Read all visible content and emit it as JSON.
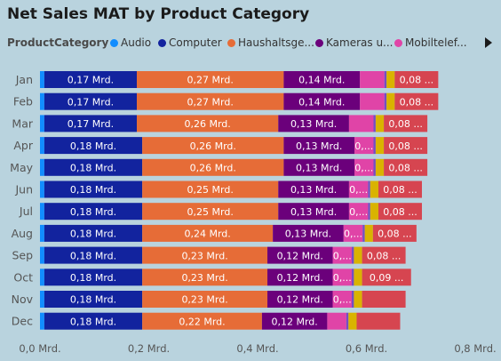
{
  "chart_data": {
    "type": "bar",
    "orientation": "horizontal",
    "stacked": true,
    "title": "Net Sales MAT by Product Category",
    "legend": {
      "title": "ProductCategory",
      "placement": "top-left",
      "entries": [
        "Audio",
        "Computer",
        "Haushaltsge...",
        "Kameras u...",
        "Mobiltelef..."
      ]
    },
    "categories": [
      "Jan",
      "Feb",
      "Mar",
      "Apr",
      "May",
      "Jun",
      "Jul",
      "Aug",
      "Sep",
      "Oct",
      "Nov",
      "Dec"
    ],
    "x_ticks": [
      "0,0 Mrd.",
      "0,2 Mrd.",
      "0,4 Mrd.",
      "0,6 Mrd.",
      "0,8 Mrd."
    ],
    "xlim": [
      0,
      0.8
    ],
    "grid": false,
    "series": [
      {
        "name": "Audio",
        "color": "#118dff",
        "values": [
          0.008,
          0.008,
          0.008,
          0.008,
          0.008,
          0.008,
          0.008,
          0.008,
          0.008,
          0.008,
          0.008,
          0.008
        ],
        "labels": [
          "",
          "",
          "",
          "",
          "",
          "",
          "",
          "",
          "",
          "",
          "",
          ""
        ]
      },
      {
        "name": "Computer",
        "color": "#12239e",
        "values": [
          0.17,
          0.17,
          0.17,
          0.18,
          0.18,
          0.18,
          0.18,
          0.18,
          0.18,
          0.18,
          0.18,
          0.18
        ],
        "labels": [
          "0,17 Mrd.",
          "0,17 Mrd.",
          "0,17 Mrd.",
          "0,18 Mrd.",
          "0,18 Mrd.",
          "0,18 Mrd.",
          "0,18 Mrd.",
          "0,18 Mrd.",
          "0,18 Mrd.",
          "0,18 Mrd.",
          "0,18 Mrd.",
          "0,18 Mrd."
        ]
      },
      {
        "name": "Haushaltsge...",
        "color": "#e66c37",
        "values": [
          0.27,
          0.27,
          0.26,
          0.26,
          0.26,
          0.25,
          0.25,
          0.24,
          0.23,
          0.23,
          0.23,
          0.22
        ],
        "labels": [
          "0,27 Mrd.",
          "0,27 Mrd.",
          "0,26 Mrd.",
          "0,26 Mrd.",
          "0,26 Mrd.",
          "0,25 Mrd.",
          "0,25 Mrd.",
          "0,24 Mrd.",
          "0,23 Mrd.",
          "0,23 Mrd.",
          "0,23 Mrd.",
          "0,22 Mrd."
        ]
      },
      {
        "name": "Kameras u...",
        "color": "#6b007b",
        "values": [
          0.14,
          0.14,
          0.13,
          0.13,
          0.13,
          0.13,
          0.13,
          0.13,
          0.12,
          0.12,
          0.12,
          0.12
        ],
        "labels": [
          "0,14 Mrd.",
          "0,14 Mrd.",
          "0,13 Mrd.",
          "0,13 Mrd.",
          "0,13 Mrd.",
          "0,13 Mrd.",
          "0,13 Mrd.",
          "0,13 Mrd.",
          "0,12 Mrd.",
          "0,12 Mrd.",
          "0,12 Mrd.",
          "0,12 Mrd."
        ]
      },
      {
        "name": "Mobiltelef...",
        "color": "#e044a7",
        "values": [
          0.045,
          0.045,
          0.045,
          0.035,
          0.035,
          0.035,
          0.035,
          0.035,
          0.035,
          0.035,
          0.035,
          0.035
        ],
        "labels": [
          "",
          "",
          "",
          "0,...",
          "0,...",
          "0,...",
          "0,...",
          "0,...",
          "0,...",
          "0,...",
          "0,...",
          ""
        ]
      },
      {
        "name": "",
        "color": "#744ec2",
        "values": [
          0.004,
          0.004,
          0.004,
          0.004,
          0.004,
          0.004,
          0.004,
          0.004,
          0.004,
          0.004,
          0.004,
          0.004
        ],
        "labels": [
          "",
          "",
          "",
          "",
          "",
          "",
          "",
          "",
          "",
          "",
          "",
          ""
        ]
      },
      {
        "name": "",
        "color": "#d9b300",
        "values": [
          0.015,
          0.015,
          0.015,
          0.015,
          0.015,
          0.015,
          0.015,
          0.015,
          0.015,
          0.015,
          0.015,
          0.015
        ],
        "labels": [
          "",
          "",
          "",
          "",
          "",
          "",
          "",
          "",
          "",
          "",
          "",
          ""
        ]
      },
      {
        "name": "",
        "color": "#d64550",
        "values": [
          0.08,
          0.08,
          0.08,
          0.08,
          0.08,
          0.08,
          0.08,
          0.08,
          0.08,
          0.09,
          0.08,
          0.08
        ],
        "labels": [
          "0,08 ...",
          "0,08 ...",
          "0,08 ...",
          "0,08 ...",
          "0,08 ...",
          "0,08 ...",
          "0,08 ...",
          "0,08 ...",
          "0,08 ...",
          "0,09 ...",
          "",
          ""
        ]
      }
    ]
  }
}
